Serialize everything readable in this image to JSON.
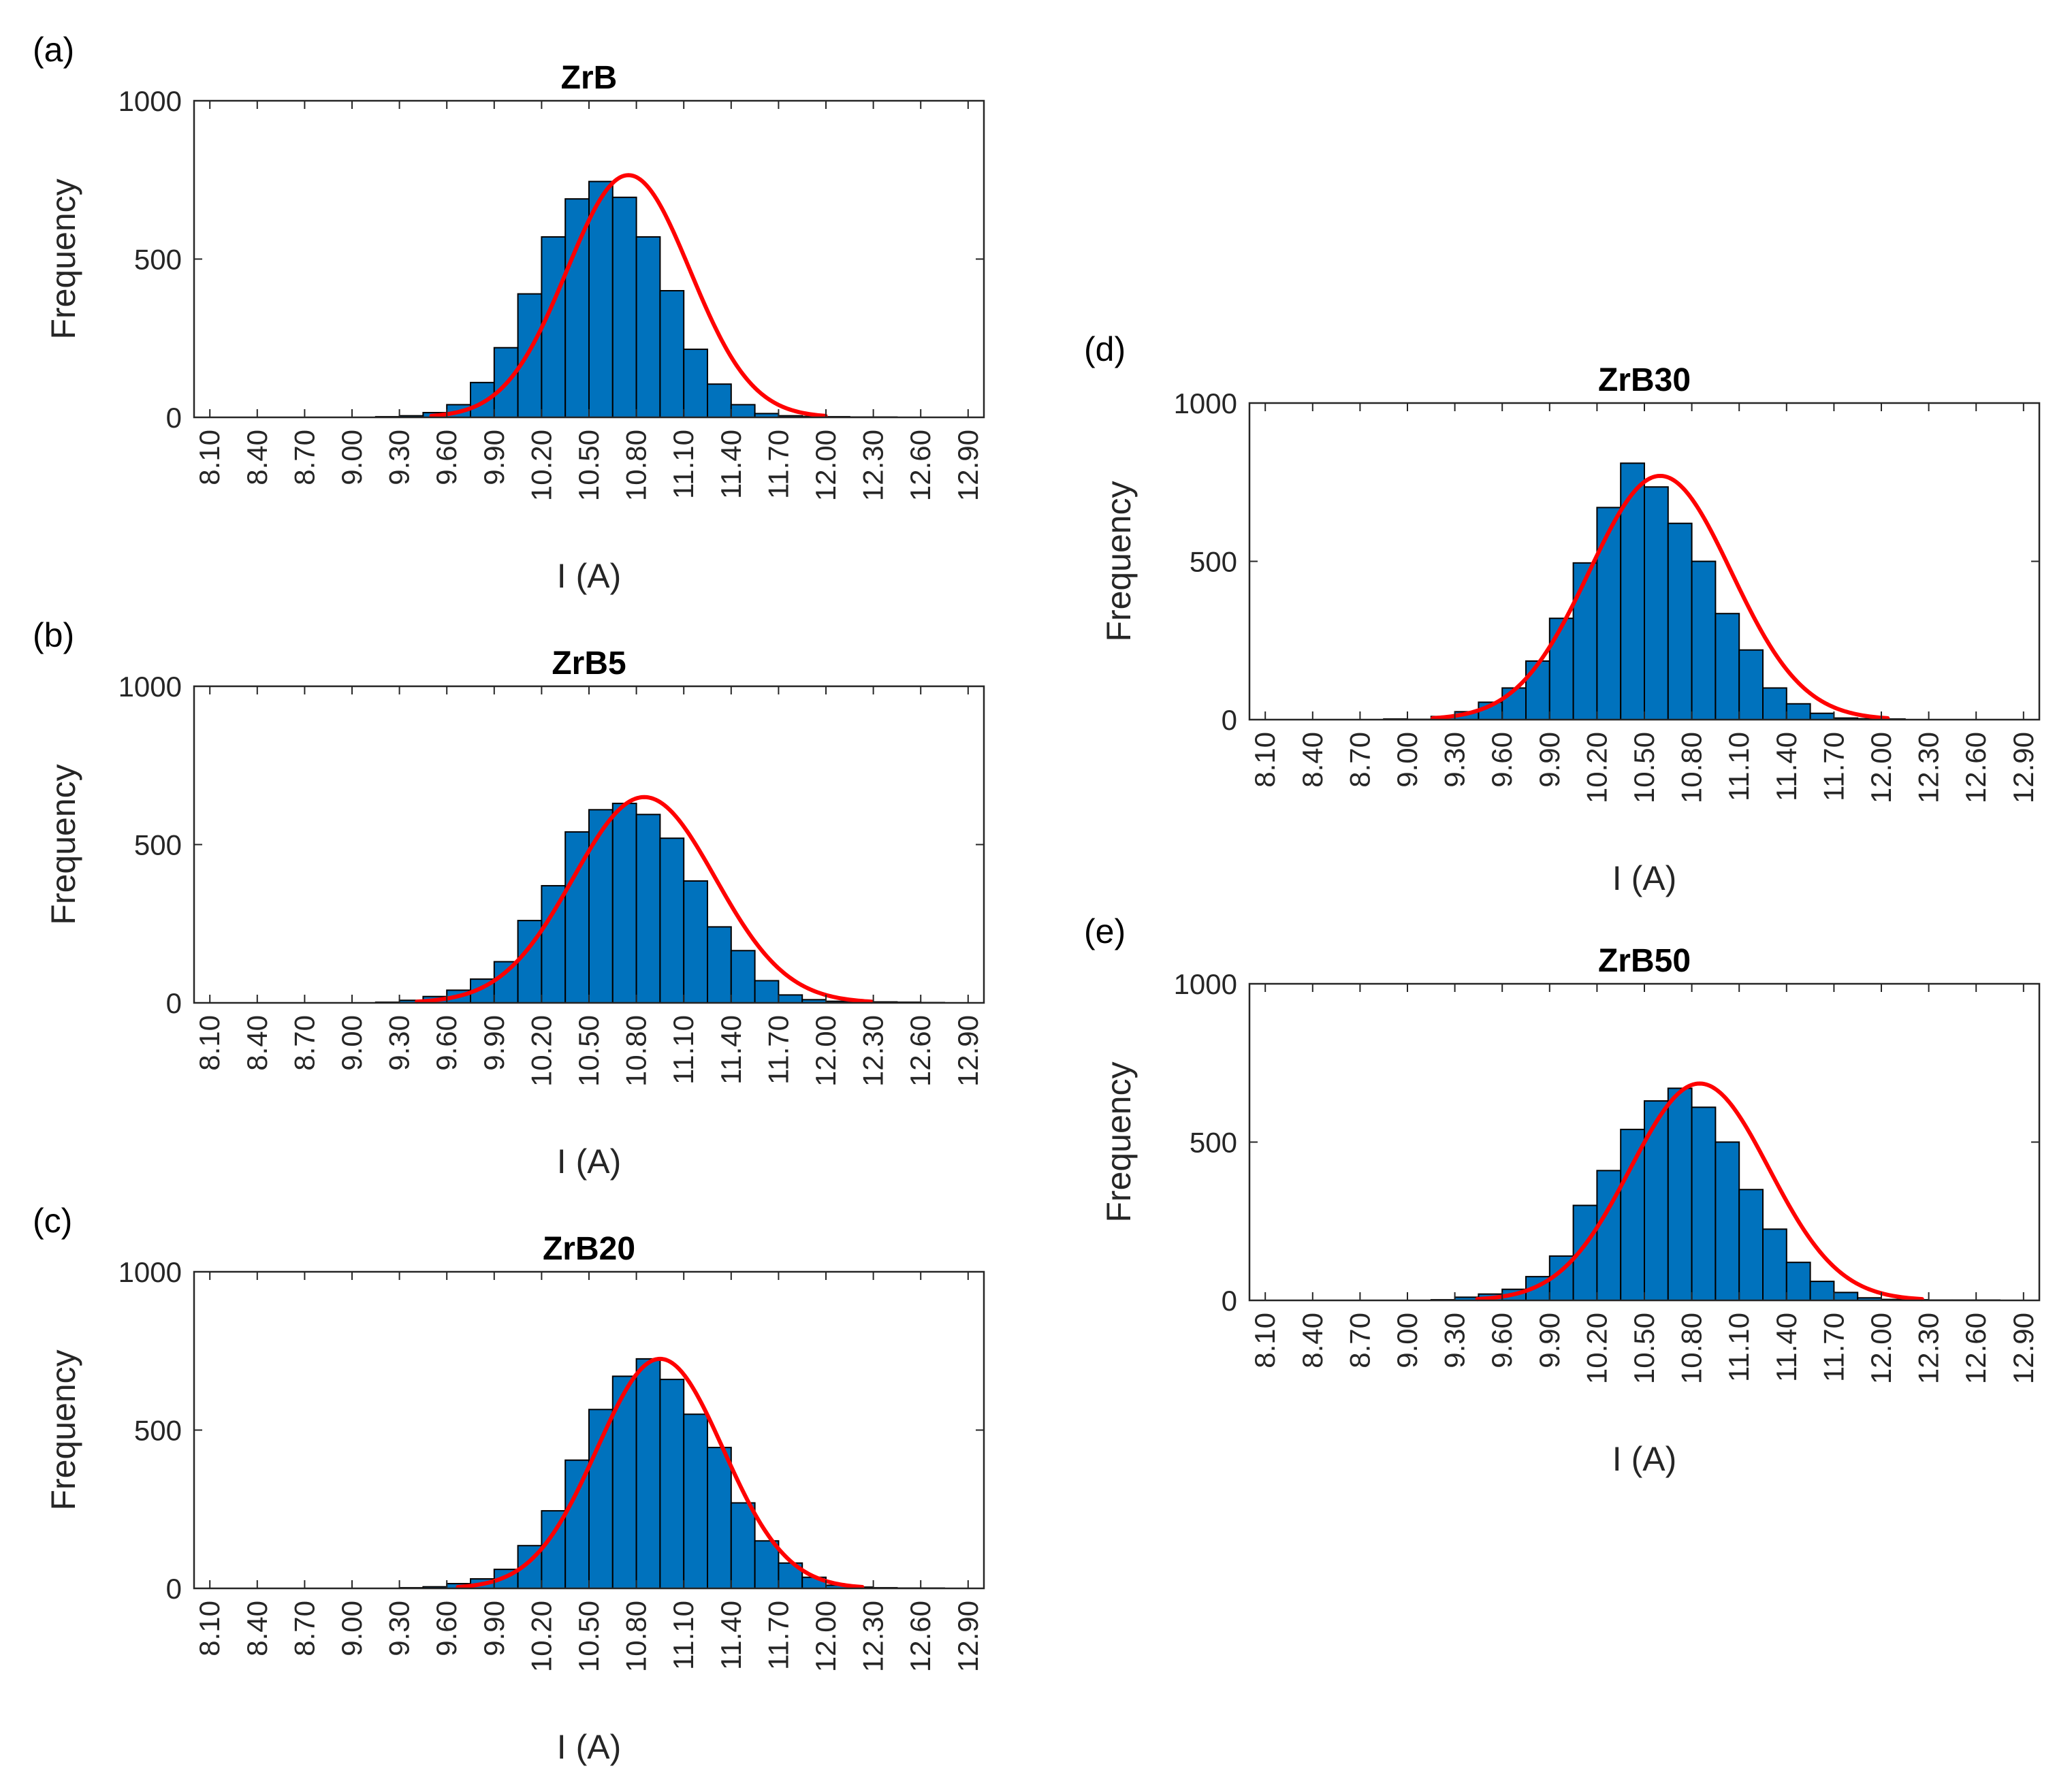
{
  "figure": {
    "x_tick_labels": [
      "8.10",
      "8.40",
      "8.70",
      "9.00",
      "9.30",
      "9.60",
      "9.90",
      "10.20",
      "10.50",
      "10.80",
      "11.10",
      "11.40",
      "11.70",
      "12.00",
      "12.30",
      "12.60",
      "12.90"
    ],
    "y_tick_labels": [
      "0",
      "500",
      "1000"
    ],
    "bar_color": "#0072bd",
    "curve_color": "#ff0000"
  },
  "chart_data": [
    {
      "type": "bar",
      "panel": "(a)",
      "title": "ZrB",
      "xlabel": "I (A)",
      "ylabel": "Frequency",
      "xlim": [
        8.0,
        13.0
      ],
      "ylim": [
        0,
        1000
      ],
      "bin_width": 0.15,
      "bin_edges": [
        9.15,
        9.3,
        9.45,
        9.6,
        9.75,
        9.9,
        10.05,
        10.2,
        10.35,
        10.5,
        10.65,
        10.8,
        10.95,
        11.1,
        11.25,
        11.4,
        11.55,
        11.7,
        11.85,
        12.0,
        12.15,
        12.3,
        12.45
      ],
      "values": [
        2,
        5,
        15,
        40,
        110,
        220,
        390,
        570,
        690,
        745,
        695,
        570,
        400,
        215,
        105,
        40,
        12,
        5,
        3,
        2,
        1,
        1
      ],
      "fit": {
        "mean": 10.75,
        "std": 0.39,
        "peak": 765
      }
    },
    {
      "type": "bar",
      "panel": "(b)",
      "title": "ZrB5",
      "xlabel": "I (A)",
      "ylabel": "Frequency",
      "xlim": [
        8.0,
        13.0
      ],
      "ylim": [
        0,
        1000
      ],
      "bin_width": 0.15,
      "bin_edges": [
        9.15,
        9.3,
        9.45,
        9.6,
        9.75,
        9.9,
        10.05,
        10.2,
        10.35,
        10.5,
        10.65,
        10.8,
        10.95,
        11.1,
        11.25,
        11.4,
        11.55,
        11.7,
        11.85,
        12.0,
        12.15,
        12.3,
        12.45,
        12.6,
        12.75
      ],
      "values": [
        2,
        8,
        20,
        40,
        75,
        130,
        260,
        370,
        540,
        610,
        630,
        595,
        520,
        385,
        240,
        165,
        70,
        25,
        10,
        5,
        3,
        3,
        2,
        1
      ],
      "fit": {
        "mean": 10.85,
        "std": 0.45,
        "peak": 650
      }
    },
    {
      "type": "bar",
      "panel": "(c)",
      "title": "ZrB20",
      "xlabel": "I (A)",
      "ylabel": "Frequency",
      "xlim": [
        8.0,
        13.0
      ],
      "ylim": [
        0,
        1000
      ],
      "bin_width": 0.15,
      "bin_edges": [
        9.3,
        9.45,
        9.6,
        9.75,
        9.9,
        10.05,
        10.2,
        10.35,
        10.5,
        10.65,
        10.8,
        10.95,
        11.1,
        11.25,
        11.4,
        11.55,
        11.7,
        11.85,
        12.0,
        12.15,
        12.3,
        12.45,
        12.6,
        12.75
      ],
      "values": [
        2,
        5,
        15,
        30,
        60,
        135,
        245,
        405,
        565,
        670,
        725,
        660,
        550,
        445,
        270,
        150,
        80,
        35,
        10,
        4,
        2,
        1,
        1
      ],
      "fit": {
        "mean": 10.95,
        "std": 0.4,
        "peak": 725
      }
    },
    {
      "type": "bar",
      "panel": "(d)",
      "title": "ZrB30",
      "xlabel": "I (A)",
      "ylabel": "Frequency",
      "xlim": [
        8.0,
        13.0
      ],
      "ylim": [
        0,
        1000
      ],
      "bin_width": 0.15,
      "bin_edges": [
        8.85,
        9.0,
        9.15,
        9.3,
        9.45,
        9.6,
        9.75,
        9.9,
        10.05,
        10.2,
        10.35,
        10.5,
        10.65,
        10.8,
        10.95,
        11.1,
        11.25,
        11.4,
        11.55,
        11.7,
        11.85,
        12.0,
        12.15
      ],
      "values": [
        2,
        1,
        10,
        25,
        55,
        100,
        185,
        320,
        495,
        670,
        810,
        735,
        620,
        500,
        335,
        220,
        100,
        50,
        20,
        5,
        3,
        2
      ],
      "fit": {
        "mean": 10.6,
        "std": 0.45,
        "peak": 770
      }
    },
    {
      "type": "bar",
      "panel": "(e)",
      "title": "ZrB50",
      "xlabel": "I (A)",
      "ylabel": "Frequency",
      "xlim": [
        8.0,
        13.0
      ],
      "ylim": [
        0,
        1000
      ],
      "bin_width": 0.15,
      "bin_edges": [
        9.15,
        9.3,
        9.45,
        9.6,
        9.75,
        9.9,
        10.05,
        10.2,
        10.35,
        10.5,
        10.65,
        10.8,
        10.95,
        11.1,
        11.25,
        11.4,
        11.55,
        11.7,
        11.85,
        12.0,
        12.15,
        12.3,
        12.45,
        12.6,
        12.75
      ],
      "values": [
        2,
        10,
        20,
        35,
        75,
        140,
        300,
        410,
        540,
        630,
        670,
        610,
        500,
        350,
        225,
        120,
        60,
        25,
        8,
        3,
        2,
        1,
        1,
        1
      ],
      "fit": {
        "mean": 10.85,
        "std": 0.44,
        "peak": 685
      }
    }
  ]
}
